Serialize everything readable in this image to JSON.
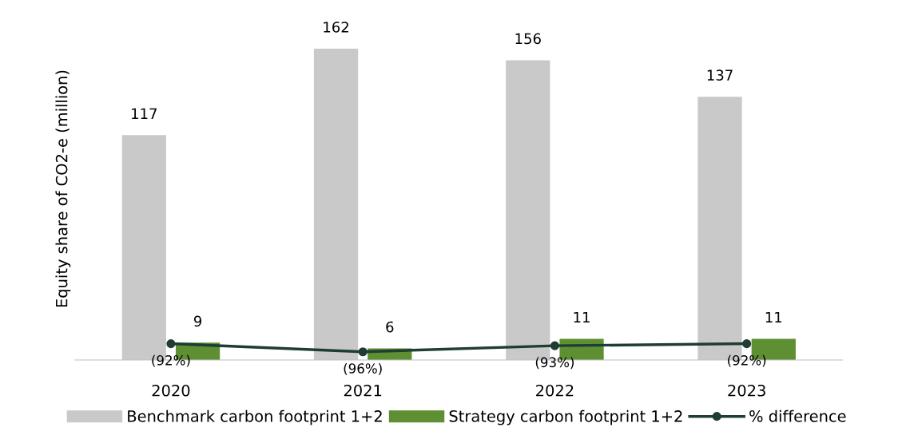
{
  "chart_data": {
    "type": "bar",
    "ylabel": "Equity share of CO2-e (million)",
    "categories": [
      "2020",
      "2021",
      "2022",
      "2023"
    ],
    "tick_labels": "x",
    "grid": false,
    "legend": "bottom",
    "marker": "circle",
    "series": [
      {
        "name": "Benchmark carbon footprint 1+2",
        "color": "#c9c9c9",
        "values": [
          117,
          162,
          156,
          137
        ],
        "value_labels": [
          "117",
          "162",
          "156",
          "137"
        ]
      },
      {
        "name": "Strategy carbon footprint 1+2",
        "color": "#5e8f32",
        "values": [
          9,
          6,
          11,
          11
        ],
        "value_labels": [
          "9",
          "6",
          "11",
          "11"
        ]
      },
      {
        "name": "% difference",
        "type": "line",
        "axis": "y2",
        "color": "#1e3d33",
        "values": [
          -92,
          -96,
          -93,
          -92
        ],
        "value_labels": [
          "(92%)",
          "(96%)",
          "(93%)",
          "(92%)"
        ]
      }
    ]
  }
}
